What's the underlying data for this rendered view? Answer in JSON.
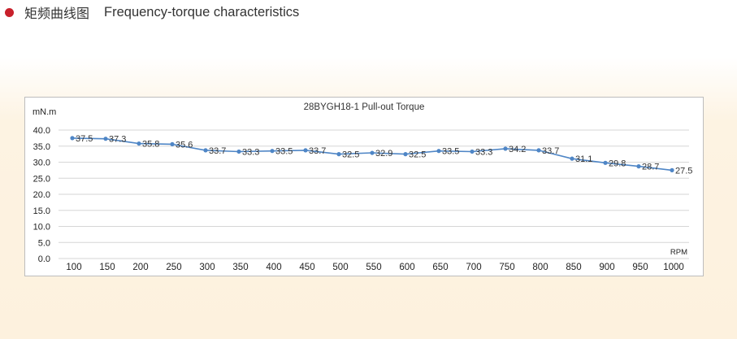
{
  "header": {
    "title_cn": "矩频曲线图",
    "title_en": "Frequency-torque characteristics",
    "bullet_color": "#c8202b"
  },
  "chart_data": {
    "type": "line",
    "title": "28BYGH18-1 Pull-out Torque",
    "ylabel": "mN.m",
    "xlabel": "RPM",
    "ylim": [
      0,
      40
    ],
    "yticks": [
      "0.0",
      "5.0",
      "10.0",
      "15.0",
      "20.0",
      "25.0",
      "30.0",
      "35.0",
      "40.0"
    ],
    "categories": [
      "100",
      "150",
      "200",
      "250",
      "300",
      "350",
      "400",
      "450",
      "500",
      "550",
      "600",
      "650",
      "700",
      "750",
      "800",
      "850",
      "900",
      "950",
      "1000"
    ],
    "series": [
      {
        "values": [
          37.5,
          37.3,
          35.8,
          35.6,
          33.7,
          33.3,
          33.5,
          33.7,
          32.5,
          32.9,
          32.5,
          33.5,
          33.3,
          34.2,
          33.7,
          31.1,
          29.8,
          28.7,
          27.5
        ],
        "labels": [
          "37.5",
          "37.3",
          "35.8",
          "35.6",
          "33.7",
          "33.3",
          "33.5",
          "33.7",
          "32.5",
          "32.9",
          "32.5",
          "33.5",
          "33.3",
          "34.2",
          "33.7",
          "31.1",
          "29.8",
          "28.7",
          "27.5"
        ],
        "color": "#4f86c6"
      }
    ],
    "grid": true
  }
}
